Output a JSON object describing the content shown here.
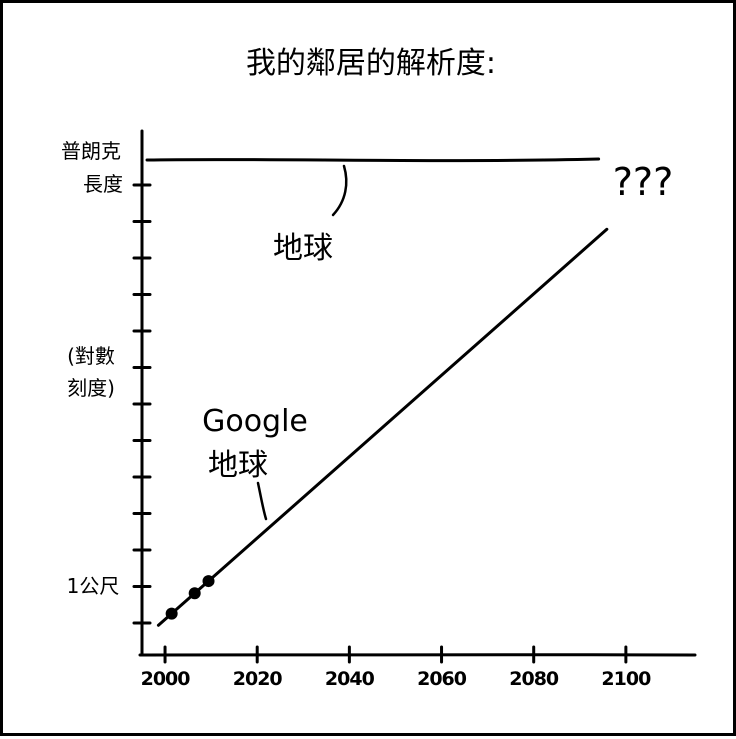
{
  "page": {
    "title": "我的鄰居的解析度:"
  },
  "chart_data": {
    "type": "line",
    "title": "我的鄰居的解析度:",
    "xlabel": "",
    "ylabel": "(對數刻度)",
    "y_scale": "log",
    "x_ticks": [
      "2000",
      "2020",
      "2040",
      "2060",
      "2080",
      "2100"
    ],
    "xlim": [
      1995,
      2115
    ],
    "y_labels": {
      "top": [
        "普朗克",
        "長度"
      ],
      "middle": [
        "(對數",
        "刻度)"
      ],
      "bottom": "1公尺"
    },
    "series": [
      {
        "name": "地球",
        "x": [
          2000,
          2093
        ],
        "y_level": "planck_length",
        "style": "flat line"
      },
      {
        "name": "Google 地球",
        "x": [
          1999,
          2095
        ],
        "y_relative": [
          0.06,
          0.86
        ],
        "points": [
          {
            "x": 2001,
            "y_relative": 0.085
          },
          {
            "x": 2006,
            "y_relative": 0.11
          },
          {
            "x": 2009,
            "y_relative": 0.135
          }
        ]
      }
    ],
    "annotations": [
      {
        "label": "地球",
        "target": "flat line"
      },
      {
        "label_lines": [
          "Google",
          "地球"
        ],
        "target": "rising line"
      },
      {
        "label": "???",
        "position": "top-right"
      }
    ],
    "grid": false,
    "legend": "none"
  },
  "colors": {
    "ink": "#000000",
    "background": "#ffffff"
  }
}
